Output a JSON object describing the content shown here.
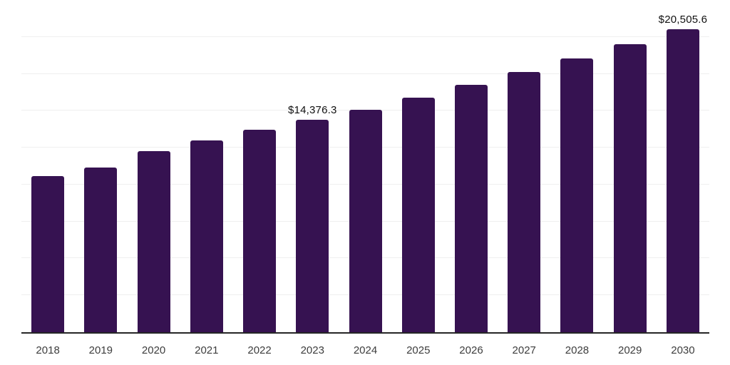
{
  "chart_data": {
    "type": "bar",
    "title": "",
    "xlabel": "",
    "ylabel": "",
    "categories": [
      "2018",
      "2019",
      "2020",
      "2021",
      "2022",
      "2023",
      "2024",
      "2025",
      "2026",
      "2027",
      "2028",
      "2029",
      "2030"
    ],
    "values": [
      10555,
      11135,
      12250,
      12965,
      13690,
      14376.3,
      15065,
      15910,
      16775,
      17640,
      18560,
      19525,
      20505.6
    ],
    "data_labels": [
      "",
      "",
      "",
      "",
      "",
      "$14,376.3",
      "",
      "",
      "",
      "",
      "",
      "",
      "$20,505.6"
    ],
    "ylim": [
      0,
      22500
    ],
    "gridline_step": 2500,
    "grid": "horizontal",
    "legend_position": "none",
    "y_axis_tick_labels": "hidden",
    "currency_format": "$#,###.#"
  },
  "style": {
    "background_color": "#ffffff",
    "bar_color": "#361251",
    "gridline_color": "#efefef",
    "axis_line_color": "#262626",
    "x_tick_label_color": "#3d3d3d",
    "data_label_color": "#111111"
  }
}
